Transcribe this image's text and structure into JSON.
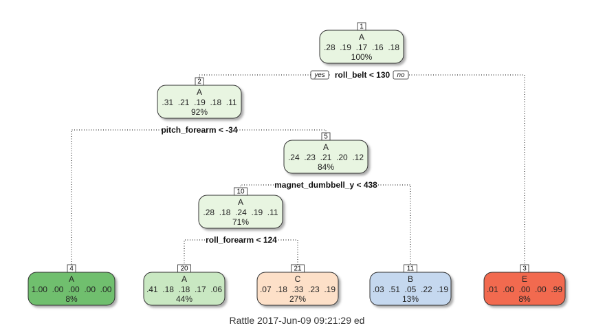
{
  "tree": {
    "nodes": [
      {
        "id": "1",
        "cls": "A",
        "probs": ".28  .19  .17  .16  .18",
        "pct": "100%",
        "fill": "#e8f5e1"
      },
      {
        "id": "2",
        "cls": "A",
        "probs": ".31  .21  .19  .18  .11",
        "pct": "92%",
        "fill": "#e8f5e1"
      },
      {
        "id": "5",
        "cls": "A",
        "probs": ".24  .23  .21  .20  .12",
        "pct": "84%",
        "fill": "#e8f5e1"
      },
      {
        "id": "10",
        "cls": "A",
        "probs": ".28  .18  .24  .19  .11",
        "pct": "71%",
        "fill": "#e8f5e1"
      },
      {
        "id": "4",
        "cls": "A",
        "probs": "1.00  .00  .00  .00  .00",
        "pct": "8%",
        "fill": "#6fbf6e"
      },
      {
        "id": "20",
        "cls": "A",
        "probs": ".41  .18  .18  .17  .06",
        "pct": "44%",
        "fill": "#c9e8c2"
      },
      {
        "id": "21",
        "cls": "C",
        "probs": ".07  .18  .33  .23  .19",
        "pct": "27%",
        "fill": "#fde0c8"
      },
      {
        "id": "11",
        "cls": "B",
        "probs": ".03  .51  .05  .22  .19",
        "pct": "13%",
        "fill": "#c5d8ef"
      },
      {
        "id": "3",
        "cls": "E",
        "probs": ".01  .00  .00  .00  .99",
        "pct": "8%",
        "fill": "#f26a4f"
      }
    ],
    "splits": {
      "root": "roll_belt < 130",
      "n2": "pitch_forearm < -34",
      "n5": "magnet_dumbbell_y < 438",
      "n10": "roll_forearm < 124"
    },
    "branch_labels": {
      "yes": "yes",
      "no": "no"
    }
  },
  "footer": "Rattle 2017-Jun-09 09:21:29 ed"
}
